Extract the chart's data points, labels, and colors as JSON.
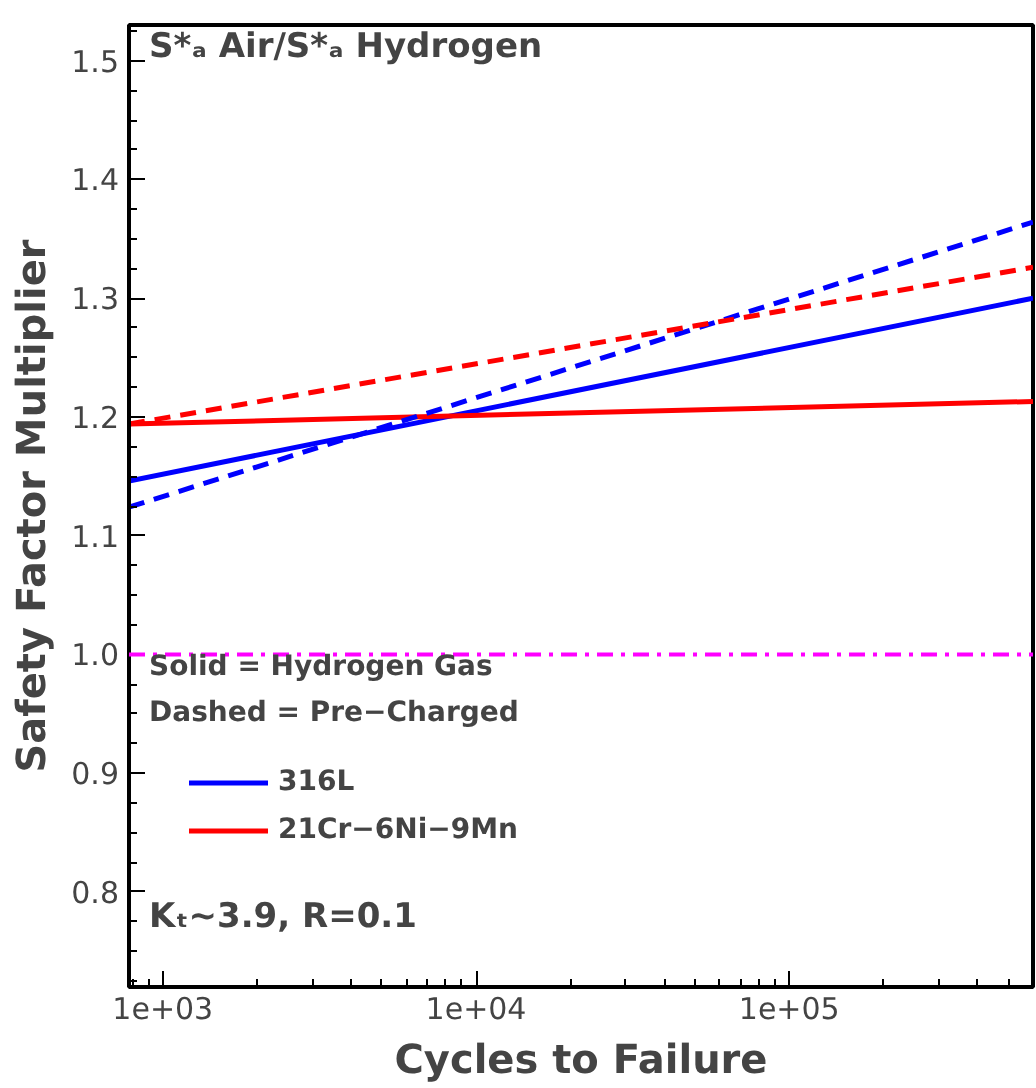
{
  "chart_data": {
    "type": "line",
    "xlabel": "Cycles to Failure",
    "ylabel": "Safety Factor Multiplier",
    "annotations": [
      "S*ₐ Air/S*ₐ Hydrogen",
      "Solid = Hydrogen Gas",
      "Dashed = Pre−Charged",
      "Kₜ~3.9, R=0.1"
    ],
    "x": [
      780,
      600000
    ],
    "series": [
      {
        "name": "316L",
        "color": "#0000ff",
        "values": [
          1.146,
          1.3
        ],
        "line_style": "solid"
      },
      {
        "name": "21Cr−6Ni−9Mn",
        "color": "#ff0000",
        "values": [
          1.194,
          1.213
        ],
        "line_style": "solid"
      },
      {
        "color": "#0000ff",
        "values": [
          1.124,
          1.364
        ],
        "line_style": "dashed"
      },
      {
        "color": "#ff0000",
        "values": [
          1.194,
          1.326
        ],
        "line_style": "dashed"
      }
    ],
    "xlim": [
      780,
      600000
    ],
    "ylim": [
      0.72,
      1.53
    ],
    "log": "x",
    "xticks": [
      {
        "value": 1000,
        "label": "1e+03"
      },
      {
        "value": 10000,
        "label": "1e+04"
      },
      {
        "value": 100000,
        "label": "1e+05"
      }
    ],
    "yticks": [
      0.8,
      0.9,
      {
        "value": 1.0,
        "label": "1.0"
      },
      1.1,
      1.2,
      1.3,
      1.4,
      1.5
    ],
    "ref_lines": [
      {
        "axis": "y",
        "value": 1.0,
        "label": null,
        "color": "#ff00ff",
        "line_style": "dashdot"
      }
    ],
    "grid": false,
    "legend": "bottom left",
    "marker": "none"
  }
}
